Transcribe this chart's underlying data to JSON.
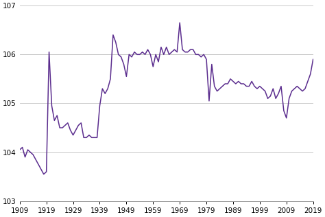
{
  "years": [
    1909,
    1910,
    1911,
    1912,
    1913,
    1914,
    1915,
    1916,
    1917,
    1918,
    1919,
    1920,
    1921,
    1922,
    1923,
    1924,
    1925,
    1926,
    1927,
    1928,
    1929,
    1930,
    1931,
    1932,
    1933,
    1934,
    1935,
    1936,
    1937,
    1938,
    1939,
    1940,
    1941,
    1942,
    1943,
    1944,
    1945,
    1946,
    1947,
    1948,
    1949,
    1950,
    1951,
    1952,
    1953,
    1954,
    1955,
    1956,
    1957,
    1958,
    1959,
    1960,
    1961,
    1962,
    1963,
    1964,
    1965,
    1966,
    1967,
    1968,
    1969,
    1970,
    1971,
    1972,
    1973,
    1974,
    1975,
    1976,
    1977,
    1978,
    1979,
    1980,
    1981,
    1982,
    1983,
    1984,
    1985,
    1986,
    1987,
    1988,
    1989,
    1990,
    1991,
    1992,
    1993,
    1994,
    1995,
    1996,
    1997,
    1998,
    1999,
    2000,
    2001,
    2002,
    2003,
    2004,
    2005,
    2006,
    2007,
    2008,
    2009,
    2010,
    2011,
    2012,
    2013,
    2014,
    2015,
    2016,
    2017,
    2018,
    2019
  ],
  "values": [
    104.05,
    104.1,
    103.9,
    104.05,
    104.0,
    103.95,
    103.85,
    103.75,
    103.65,
    103.55,
    103.6,
    106.05,
    104.95,
    104.65,
    104.75,
    104.5,
    104.5,
    104.55,
    104.6,
    104.45,
    104.35,
    104.45,
    104.55,
    104.6,
    104.3,
    104.3,
    104.35,
    104.3,
    104.3,
    104.3,
    104.95,
    105.3,
    105.2,
    105.3,
    105.5,
    106.4,
    106.25,
    106.0,
    105.95,
    105.8,
    105.55,
    106.0,
    105.95,
    106.05,
    106.0,
    106.0,
    106.05,
    106.0,
    106.1,
    106.0,
    105.75,
    106.0,
    105.85,
    106.15,
    106.0,
    106.15,
    106.0,
    106.05,
    106.1,
    106.05,
    106.65,
    106.1,
    106.05,
    106.05,
    106.1,
    106.1,
    106.0,
    106.0,
    105.95,
    106.0,
    105.9,
    105.05,
    105.8,
    105.35,
    105.25,
    105.3,
    105.35,
    105.4,
    105.4,
    105.5,
    105.45,
    105.4,
    105.45,
    105.4,
    105.4,
    105.35,
    105.35,
    105.45,
    105.35,
    105.3,
    105.35,
    105.3,
    105.25,
    105.1,
    105.15,
    105.3,
    105.1,
    105.2,
    105.35,
    104.85,
    104.7,
    105.1,
    105.25,
    105.3,
    105.35,
    105.3,
    105.25,
    105.3,
    105.45,
    105.6,
    105.9
  ],
  "line_color": "#5b2d8e",
  "line_width": 1.1,
  "ylim": [
    103,
    107
  ],
  "xlim": [
    1909,
    2019
  ],
  "yticks": [
    103,
    104,
    105,
    106,
    107
  ],
  "xticks": [
    1909,
    1919,
    1929,
    1939,
    1949,
    1959,
    1969,
    1979,
    1989,
    1999,
    2009,
    2019
  ],
  "grid_color": "#c8c8c8",
  "bg_color": "#ffffff",
  "tick_fontsize": 7.5
}
